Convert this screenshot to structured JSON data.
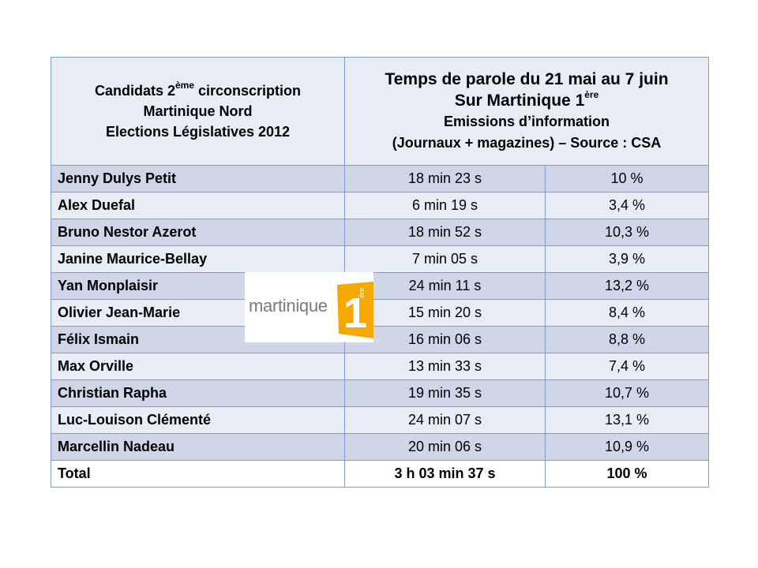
{
  "header": {
    "candidates_line1": "Candidats 2",
    "candidates_sup": "ème",
    "candidates_line1_end": " circonscription",
    "candidates_line2": "Martinique Nord",
    "candidates_line3": "Elections Législatives 2012",
    "title_line1": "Temps de parole du 21 mai au 7 juin",
    "title_line2": "Sur Martinique 1",
    "title_line2_sup": "ère",
    "title_line3": "Emissions d’information",
    "title_line4": "(Journaux + magazines) – Source : CSA"
  },
  "rows": [
    {
      "name": "Jenny Dulys Petit",
      "time": "18 min 23 s",
      "pct": "10 %"
    },
    {
      "name": "Alex Duefal",
      "time": "6 min 19 s",
      "pct": "3,4 %"
    },
    {
      "name": "Bruno Nestor Azerot",
      "time": "18 min 52 s",
      "pct": "10,3 %"
    },
    {
      "name": "Janine Maurice-Bellay",
      "time": "7 min 05 s",
      "pct": "3,9 %"
    },
    {
      "name": "Yan Monplaisir",
      "time": "24 min 11 s",
      "pct": "13,2 %"
    },
    {
      "name": "Olivier Jean-Marie",
      "time": "15 min 20 s",
      "pct": "8,4 %"
    },
    {
      "name": "Félix Ismain",
      "time": "16 min 06 s",
      "pct": "8,8 %"
    },
    {
      "name": "Max Orville",
      "time": "13 min 33 s",
      "pct": "7,4 %"
    },
    {
      "name": "Christian Rapha",
      "time": "19 min 35 s",
      "pct": "10,7 %"
    },
    {
      "name": "Luc-Louison Clémenté",
      "time": "24 min 07 s",
      "pct": "13,1 %"
    },
    {
      "name": "Marcellin Nadeau",
      "time": "20 min 06 s",
      "pct": "10,9 %"
    }
  ],
  "total": {
    "label": "Total",
    "time": "3 h 03 min 37 s",
    "pct": "100 %"
  },
  "logo": {
    "text": "martinique",
    "badge_number": "1",
    "badge_sup": "ère",
    "badge_color": "#f5a800"
  }
}
